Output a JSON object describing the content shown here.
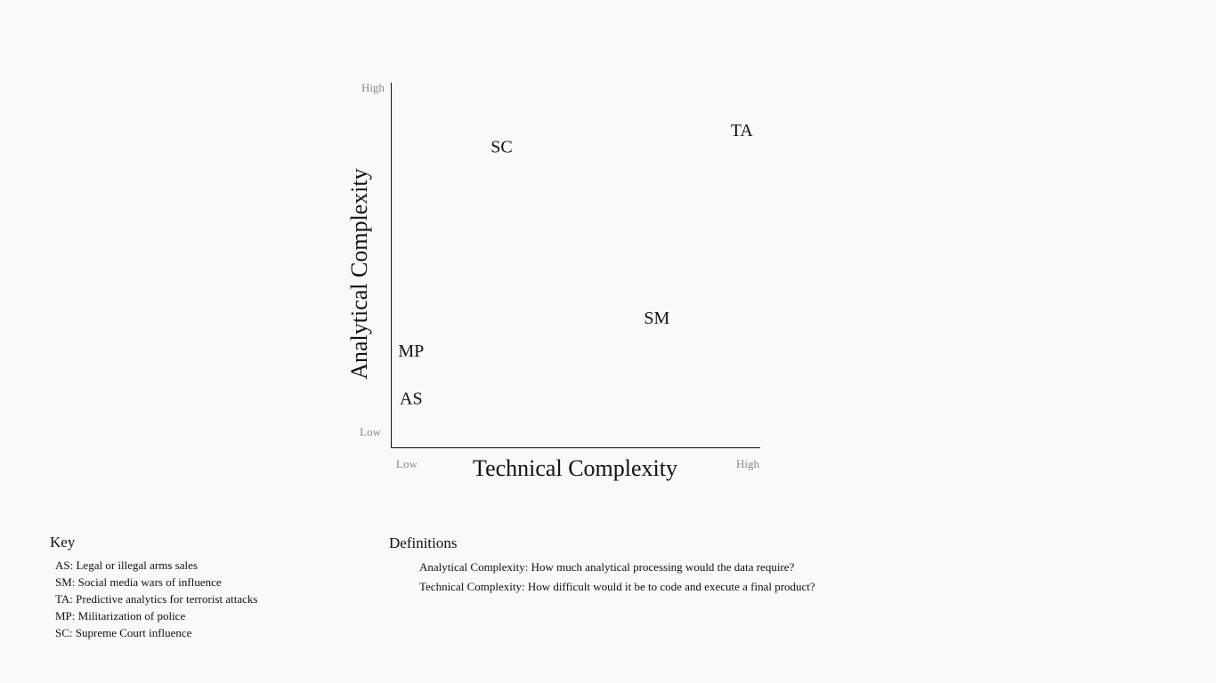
{
  "chart_data": {
    "type": "scatter",
    "xlabel": "Technical Complexity",
    "ylabel": "Analytical Complexity",
    "x_tick_labels": [
      "Low",
      "High"
    ],
    "y_tick_labels": [
      "Low",
      "High"
    ],
    "xlim": [
      0,
      10
    ],
    "ylim": [
      0,
      10
    ],
    "grid": false,
    "points": [
      {
        "label": "AS",
        "x": 0.55,
        "y": 1.3
      },
      {
        "label": "MP",
        "x": 0.55,
        "y": 2.6
      },
      {
        "label": "SM",
        "x": 7.2,
        "y": 3.5
      },
      {
        "label": "SC",
        "x": 3.0,
        "y": 8.2
      },
      {
        "label": "TA",
        "x": 9.5,
        "y": 8.65
      }
    ]
  },
  "key": {
    "title": "Key",
    "items": [
      "AS: Legal or illegal arms sales",
      "SM: Social media wars of influence",
      "TA: Predictive analytics for terrorist attacks",
      "MP: Militarization of police",
      "SC: Supreme Court influence"
    ]
  },
  "definitions": {
    "title": "Definitions",
    "items": [
      "Analytical Complexity: How much analytical processing would the data require?",
      "Technical Complexity: How difficult would it be to code and execute a final product?"
    ]
  }
}
